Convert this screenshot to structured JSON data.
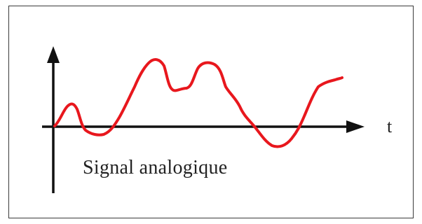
{
  "diagram": {
    "caption": "Signal analogique",
    "time_axis_label": "t",
    "colors": {
      "signal": "#e8171d",
      "axes": "#111111",
      "frame": "#3a3a3a"
    }
  }
}
